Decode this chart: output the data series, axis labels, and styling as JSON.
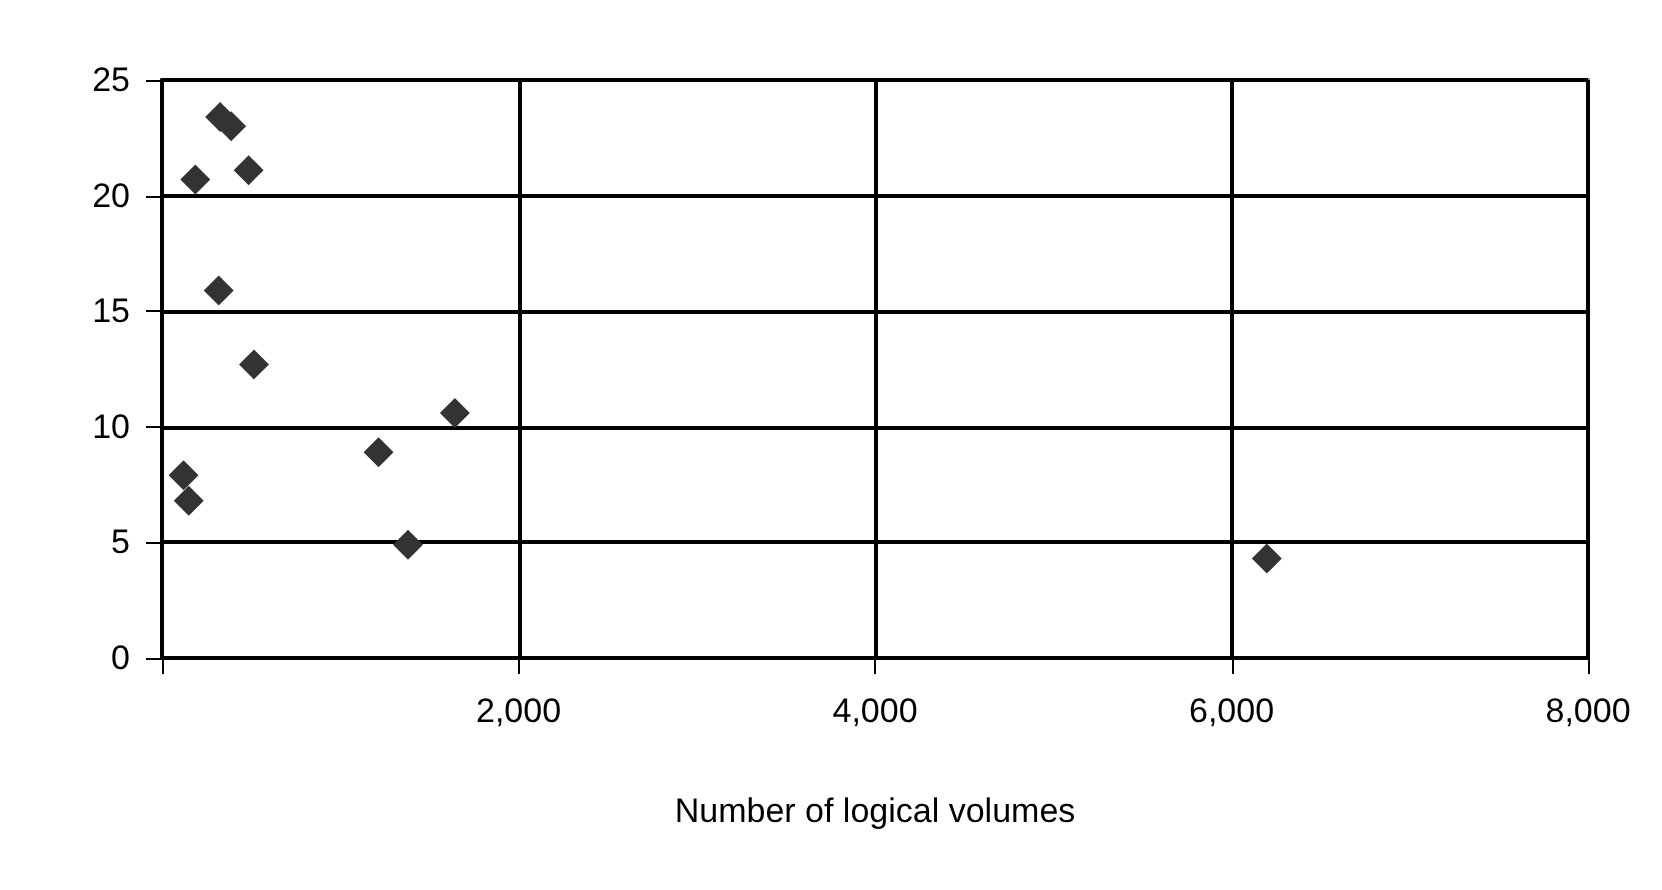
{
  "chart_data": {
    "type": "scatter",
    "xlabel": "Number of logical volumes",
    "marker": "diamond",
    "grid": true,
    "x": [
      326,
      388,
      187,
      486,
      318,
      516,
      1643,
      1215,
      121,
      150,
      1380,
      6198
    ],
    "values": [
      23.4,
      23.0,
      20.7,
      21.1,
      15.9,
      12.7,
      10.6,
      8.9,
      7.9,
      6.8,
      4.9,
      4.3
    ],
    "color": "#333333",
    "xlim": [
      0,
      8000
    ],
    "xticks": [
      {
        "value": 0,
        "label": null
      },
      {
        "value": 2000,
        "label": "2,000"
      },
      {
        "value": 4000,
        "label": "4,000"
      },
      {
        "value": 6000,
        "label": "6,000"
      },
      {
        "value": 8000,
        "label": "8,000"
      }
    ],
    "ylim": [
      0,
      25
    ],
    "yticks": [
      0,
      5,
      10,
      15,
      20,
      25
    ]
  }
}
